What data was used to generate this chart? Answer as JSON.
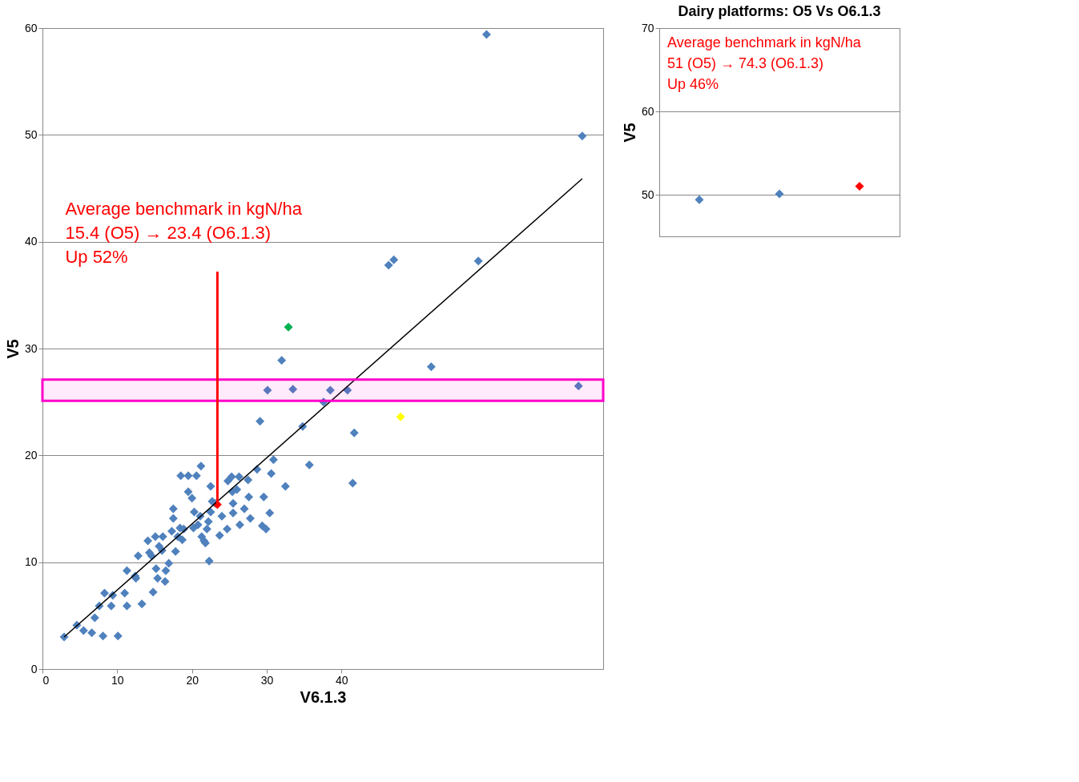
{
  "chart_data": [
    {
      "type": "scatter",
      "xlabel": "V6.1.3",
      "ylabel": "V5",
      "xlim": [
        0,
        75
      ],
      "xticks": [
        0,
        10,
        20,
        30,
        40
      ],
      "ylim": [
        0,
        60
      ],
      "yticks": [
        0,
        10,
        20,
        30,
        40,
        50,
        60
      ],
      "grid": "y",
      "marker": "diamond",
      "annotations": [
        {
          "text": "Average benchmark in kgN/ha\n15.4 (O5) → 23.4 (O6.1.3)\nUp 52%",
          "x": 23.4,
          "y": 15.4
        }
      ],
      "bands": [
        {
          "axis": "y",
          "from": 25.1,
          "to": 27.1,
          "color": "#ff00cc"
        }
      ],
      "series": [
        {
          "color": "#4f81bd",
          "x": [
            2.9,
            4.6,
            5.5,
            6.6,
            7.0,
            7.6,
            8.1,
            8.3,
            9.2,
            9.4,
            10.1,
            11.0,
            11.3,
            11.3,
            12.4,
            12.5,
            12.8,
            13.3,
            14.1,
            14.3,
            14.6,
            14.8,
            15.1,
            15.2,
            15.4,
            15.6,
            16.0,
            16.1,
            16.4,
            16.5,
            16.9,
            17.3,
            17.5,
            17.5,
            17.8,
            18.1,
            18.4,
            18.5,
            18.7,
            18.9,
            19.5,
            19.5,
            20.0,
            20.2,
            20.3,
            20.6,
            20.8,
            21.1,
            21.2,
            21.3,
            21.6,
            21.8,
            22.0,
            22.2,
            22.3,
            22.5,
            22.5,
            22.7,
            23.1,
            23.4,
            23.7,
            24.0,
            24.8,
            24.7,
            25.3,
            25.4,
            25.5,
            25.5,
            26.0,
            26.3,
            26.4,
            27.0,
            27.5,
            27.6,
            27.8,
            28.7,
            29.1,
            29.4,
            29.6,
            29.9,
            30.1,
            30.4,
            30.6,
            30.9,
            32.0,
            32.9,
            32.5,
            33.5,
            34.8,
            35.7,
            37.6,
            38.5,
            40.8,
            41.7,
            41.5,
            47.9,
            46.3,
            47.0,
            52.0,
            58.3,
            59.4,
            71.7,
            72.2
          ],
          "values": [
            3.0,
            4.1,
            3.6,
            3.4,
            4.8,
            5.9,
            3.1,
            7.1,
            5.9,
            6.9,
            3.1,
            7.1,
            9.2,
            5.9,
            8.7,
            8.5,
            10.6,
            6.1,
            12.0,
            10.9,
            10.6,
            7.2,
            12.4,
            9.4,
            8.5,
            11.5,
            11.1,
            12.4,
            8.2,
            9.2,
            9.9,
            12.9,
            15.0,
            14.1,
            11.0,
            12.4,
            13.2,
            18.1,
            12.1,
            13.1,
            18.1,
            16.6,
            16.0,
            13.2,
            14.7,
            18.1,
            13.5,
            14.3,
            19.0,
            12.4,
            12.0,
            11.8,
            13.1,
            13.8,
            10.1,
            14.7,
            17.1,
            15.7,
            15.5,
            15.4,
            12.5,
            14.3,
            17.6,
            13.1,
            18.0,
            16.6,
            15.5,
            14.6,
            16.8,
            18.0,
            13.5,
            15.0,
            17.7,
            16.1,
            14.1,
            18.7,
            23.2,
            13.4,
            16.1,
            13.1,
            26.1,
            14.6,
            18.3,
            19.6,
            28.9,
            32.0,
            17.1,
            26.2,
            22.7,
            19.1,
            25.0,
            26.1,
            26.1,
            22.1,
            17.4,
            23.6,
            37.8,
            38.3,
            28.3,
            38.2,
            59.4,
            26.5,
            49.9
          ],
          "colors": [
            null,
            null,
            null,
            null,
            null,
            null,
            null,
            null,
            null,
            null,
            null,
            null,
            null,
            null,
            null,
            null,
            null,
            null,
            null,
            null,
            null,
            null,
            null,
            null,
            null,
            null,
            null,
            null,
            null,
            null,
            null,
            null,
            null,
            null,
            null,
            null,
            null,
            null,
            null,
            null,
            null,
            null,
            null,
            null,
            null,
            null,
            null,
            null,
            null,
            null,
            null,
            null,
            null,
            null,
            null,
            null,
            null,
            null,
            null,
            "#ff0000",
            null,
            null,
            null,
            null,
            null,
            null,
            null,
            null,
            null,
            null,
            null,
            null,
            null,
            null,
            null,
            null,
            null,
            null,
            null,
            null,
            null,
            null,
            null,
            null,
            null,
            "#00b050",
            null,
            null,
            null,
            null,
            null,
            null,
            null,
            null,
            null,
            "#ffff00",
            null,
            null,
            null,
            null,
            null,
            null,
            null
          ]
        },
        {
          "type": "line",
          "marker": "none",
          "color": "#000000",
          "x": [
            2.9,
            72.2
          ],
          "values": [
            3.0,
            45.9
          ]
        }
      ]
    },
    {
      "type": "scatter",
      "title": "Dairy platforms: O5 Vs O6.1.3",
      "ylabel": "V5",
      "ylim": [
        45,
        70
      ],
      "yticks": [
        50,
        60,
        70
      ],
      "grid": "y",
      "marker": "diamond",
      "tick_labels": "y",
      "categories": [
        null,
        null,
        null
      ],
      "annotations": [
        "Average benchmark in kgN/ha\n51 (O5) → 74.3 (O6.1.3)\nUp 46%"
      ],
      "series": [
        {
          "color": "#4f81bd",
          "values": [
            49.4,
            50.1,
            51
          ],
          "colors": [
            null,
            null,
            "#ff0000"
          ]
        }
      ]
    }
  ]
}
